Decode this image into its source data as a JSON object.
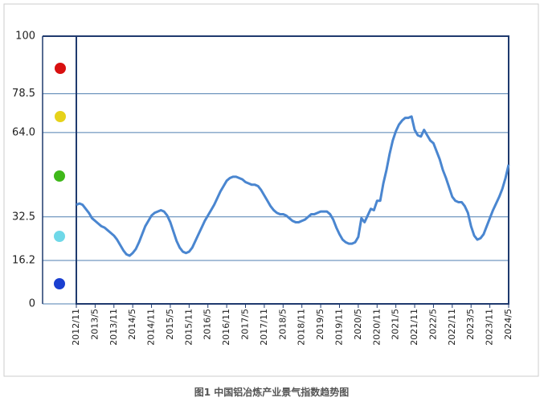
{
  "chart_data": {
    "type": "line",
    "title": "图1 中国铝冶炼产业景气指数趋势图",
    "categories": [
      "2012/11",
      null,
      null,
      null,
      null,
      null,
      "2013/5",
      null,
      null,
      null,
      null,
      null,
      "2013/11",
      null,
      null,
      null,
      null,
      null,
      "2014/5",
      null,
      null,
      null,
      null,
      null,
      "2014/11",
      null,
      null,
      null,
      null,
      null,
      "2015/5",
      null,
      null,
      null,
      null,
      null,
      "2015/11",
      null,
      null,
      null,
      null,
      null,
      "2016/5",
      null,
      null,
      null,
      null,
      null,
      "2016/11",
      null,
      null,
      null,
      null,
      null,
      "2017/5",
      null,
      null,
      null,
      null,
      null,
      "2017/11",
      null,
      null,
      null,
      null,
      null,
      "2018/5",
      null,
      null,
      null,
      null,
      null,
      "2018/11",
      null,
      null,
      null,
      null,
      null,
      "2019/5",
      null,
      null,
      null,
      null,
      null,
      "2019/11",
      null,
      null,
      null,
      null,
      null,
      "2020/5",
      null,
      null,
      null,
      null,
      null,
      "2020/11",
      null,
      null,
      null,
      null,
      null,
      "2021/5",
      null,
      null,
      null,
      null,
      null,
      "2021/11",
      null,
      null,
      null,
      null,
      null,
      "2022/5",
      null,
      null,
      null,
      null,
      null,
      "2022/11",
      null,
      null,
      null,
      null,
      null,
      "2023/5",
      null,
      null,
      null,
      null,
      null,
      "2023/11",
      null,
      null,
      null,
      null,
      null,
      "2024/5"
    ],
    "values": [
      37,
      37.5,
      37,
      35.5,
      34,
      32,
      31,
      30,
      29,
      28.5,
      27.5,
      26.5,
      25.5,
      24,
      22,
      20,
      18.5,
      18,
      19,
      20.5,
      23,
      26,
      29,
      31,
      33,
      34,
      34.5,
      35,
      34.5,
      33,
      30.5,
      27,
      23.5,
      21,
      19.5,
      19,
      19.5,
      21,
      23.5,
      26,
      28.5,
      31,
      33,
      35,
      37,
      39.5,
      42,
      44,
      46,
      47,
      47.5,
      47.5,
      47,
      46.5,
      45.5,
      45,
      44.5,
      44.5,
      44,
      42.5,
      40.5,
      38.5,
      36.5,
      35,
      34,
      33.5,
      33.5,
      33,
      32,
      31,
      30.5,
      30.5,
      31,
      31.5,
      32.5,
      33.5,
      33.5,
      34,
      34.5,
      34.5,
      34.5,
      33.5,
      31.5,
      28.5,
      26,
      24,
      23,
      22.5,
      22.5,
      23,
      25,
      32,
      30.5,
      33,
      35.5,
      35,
      38.5,
      38.5,
      45,
      50,
      56,
      61,
      64.5,
      67,
      68.5,
      69.5,
      69.5,
      70,
      65,
      63,
      62.5,
      65,
      63,
      61,
      60,
      57,
      54,
      50,
      47,
      43.5,
      40,
      38.5,
      38,
      38,
      36.5,
      34,
      29,
      25.5,
      24,
      24.5,
      26,
      29,
      32,
      35,
      37.5,
      40,
      43,
      47,
      52
    ],
    "color": "#4a86d0",
    "ylim": [
      0,
      100
    ],
    "yticks": [
      0,
      16.2,
      32.5,
      {
        "value": 64,
        "label": "64.0"
      },
      78.5,
      100
    ],
    "grid": true
  }
}
